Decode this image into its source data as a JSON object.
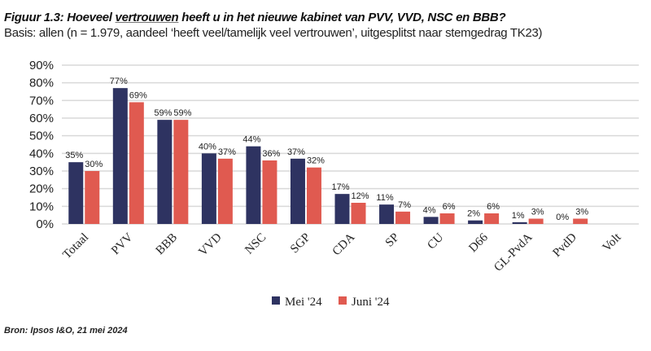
{
  "title_parts": {
    "before": "Figuur 1.3: Hoeveel ",
    "underlined": "vertrouwen",
    "after": " heeft u in het nieuwe kabinet van PVV, VVD, NSC en BBB?"
  },
  "subtitle": "Basis: allen (n = 1.979, aandeel ‘heeft veel/tamelijk veel vertrouwen’, uitgesplitst naar stemgedrag TK23)",
  "source": "Bron: Ipsos I&O, 21 mei 2024",
  "chart_data": {
    "type": "bar",
    "categories": [
      "Totaal",
      "PVV",
      "BBB",
      "VVD",
      "NSC",
      "SGP",
      "CDA",
      "SP",
      "CU",
      "D66",
      "GL-PvdA",
      "PvdD",
      "Volt"
    ],
    "series": [
      {
        "name": "Mei '24",
        "color": "#2e3361",
        "values": [
          35,
          77,
          59,
          40,
          44,
          37,
          17,
          11,
          4,
          2,
          1,
          0,
          null
        ],
        "labels": [
          "35%",
          "77%",
          "59%",
          "40%",
          "44%",
          "37%",
          "17%",
          "11%",
          "4%",
          "2%",
          "1%",
          "0%",
          ""
        ]
      },
      {
        "name": "Juni '24",
        "color": "#e05a50",
        "values": [
          30,
          69,
          59,
          37,
          36,
          32,
          12,
          7,
          6,
          6,
          3,
          3,
          null
        ],
        "labels": [
          "30%",
          "69%",
          "59%",
          "37%",
          "36%",
          "32%",
          "12%",
          "7%",
          "6%",
          "6%",
          "3%",
          "3%",
          ""
        ]
      }
    ],
    "yticks": [
      "0%",
      "10%",
      "20%",
      "30%",
      "40%",
      "50%",
      "60%",
      "70%",
      "80%",
      "90%"
    ],
    "ylim": [
      0,
      90
    ],
    "grid": true,
    "legend": "bottom"
  }
}
